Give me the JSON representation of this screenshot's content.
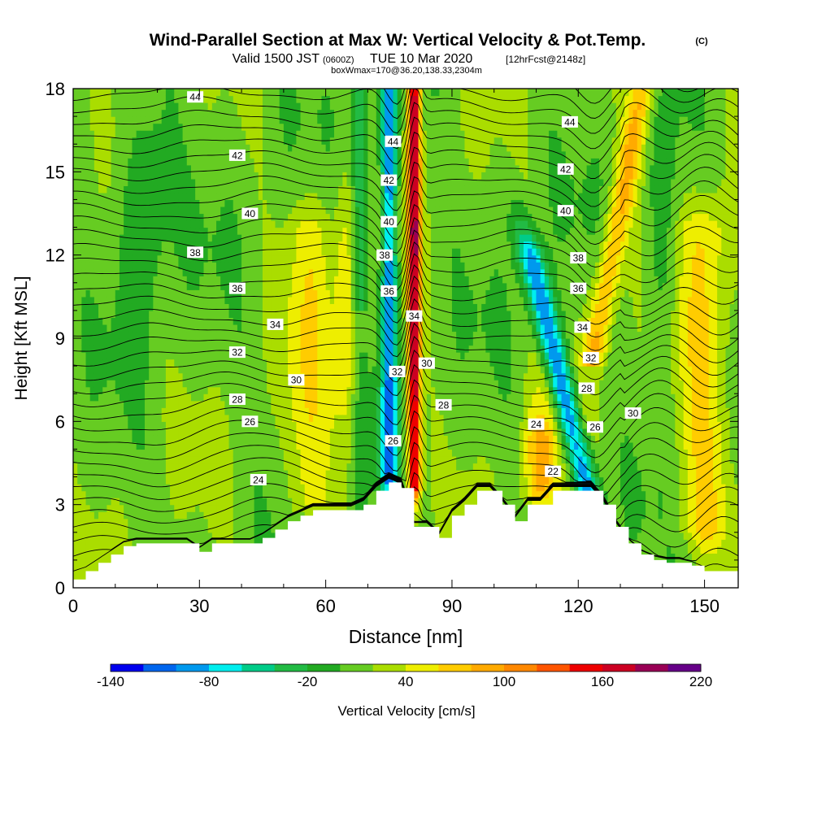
{
  "chart_data": {
    "type": "heatmap",
    "title": "Wind-Parallel Section at Max W: Vertical Velocity & Pot.Temp.",
    "title_mark": "(C)",
    "subtitle": {
      "valid": "Valid 1500 JST",
      "utc": "(0600Z)",
      "date": "TUE 10 Mar 2020",
      "forecast": "[12hrFcst@2148z]",
      "box_info": "boxWmax=170@36.20,138.33,2304m"
    },
    "xlabel": "Distance [nm]",
    "ylabel": "Height [Kft MSL]",
    "xlim": [
      0,
      158
    ],
    "ylim": [
      0,
      18
    ],
    "x_ticks": [
      0,
      30,
      60,
      90,
      120,
      150
    ],
    "y_ticks": [
      0,
      3,
      6,
      9,
      12,
      15,
      18
    ],
    "colorbar": {
      "label": "Vertical Velocity [cm/s]",
      "tick_labels": [
        "-140",
        "-80",
        "-20",
        "40",
        "100",
        "160",
        "220"
      ],
      "tick_values": [
        -140,
        -80,
        -20,
        40,
        100,
        160,
        220
      ],
      "levels": [
        -140,
        -120,
        -100,
        -80,
        -60,
        -40,
        -20,
        0,
        20,
        40,
        60,
        80,
        100,
        120,
        140,
        160,
        180,
        200,
        220
      ],
      "colors": [
        "#0000ee",
        "#0066ee",
        "#0099ee",
        "#00eeee",
        "#00cc88",
        "#22bb44",
        "#22aa22",
        "#66cc22",
        "#aadd00",
        "#eeee00",
        "#ffcc00",
        "#ffaa00",
        "#ff8800",
        "#ff5500",
        "#ee0000",
        "#cc0022",
        "#990055",
        "#660088"
      ]
    },
    "terrain": {
      "x": [
        0,
        3,
        6,
        9,
        12,
        15,
        18,
        21,
        24,
        27,
        30,
        33,
        36,
        39,
        42,
        45,
        48,
        51,
        54,
        57,
        60,
        63,
        66,
        69,
        72,
        75,
        78,
        81,
        84,
        87,
        90,
        93,
        96,
        99,
        102,
        105,
        108,
        111,
        114,
        117,
        120,
        123,
        126,
        129,
        132,
        135,
        138,
        141,
        144,
        147,
        150,
        153,
        156,
        158
      ],
      "height_kft": [
        0.3,
        0.6,
        0.9,
        1.2,
        1.5,
        1.6,
        1.6,
        1.6,
        1.6,
        1.6,
        1.3,
        1.6,
        1.6,
        1.6,
        1.6,
        1.8,
        2.1,
        2.4,
        2.6,
        2.8,
        2.8,
        2.8,
        2.8,
        3.0,
        3.5,
        3.8,
        3.6,
        2.2,
        2.2,
        1.8,
        2.6,
        3.0,
        3.5,
        3.5,
        3.0,
        2.4,
        3.0,
        3.0,
        3.5,
        3.5,
        3.5,
        3.5,
        3.0,
        2.2,
        1.6,
        1.2,
        1.0,
        0.9,
        0.9,
        0.8,
        0.6,
        0.6,
        0.6,
        0.6
      ]
    },
    "updrafts": [
      {
        "x": 81,
        "width_nm": 1.5,
        "peak_cm_s": 170,
        "z_base": 3.6,
        "z_top": 18
      },
      {
        "x": 111,
        "width_nm": 4,
        "peak_cm_s": 70,
        "z_base": 3.5,
        "z_top": 5.5
      },
      {
        "x": 150,
        "width_nm": 6,
        "peak_cm_s": 50,
        "z_base": 2,
        "z_top": 13
      },
      {
        "x": 56,
        "width_nm": 5,
        "peak_cm_s": 40,
        "z_base": 3,
        "z_top": 13
      }
    ],
    "downdrafts": [
      {
        "x": 75,
        "width_nm": 2,
        "peak_cm_s": -110,
        "z_base": 3.8,
        "z_top": 18
      },
      {
        "x": 123,
        "width_nm": 3,
        "peak_cm_s": -120,
        "z_base": 3,
        "z_top": 12
      }
    ],
    "theta_contours": {
      "levels_c": [
        22,
        24,
        26,
        28,
        30,
        32,
        34,
        36,
        38,
        40,
        42,
        44
      ],
      "labeled": [
        {
          "text": "44",
          "x": 29,
          "z": 17.7
        },
        {
          "text": "42",
          "x": 39,
          "z": 15.6
        },
        {
          "text": "40",
          "x": 42,
          "z": 13.5
        },
        {
          "text": "38",
          "x": 29,
          "z": 12.1
        },
        {
          "text": "36",
          "x": 39,
          "z": 10.8
        },
        {
          "text": "34",
          "x": 48,
          "z": 9.5
        },
        {
          "text": "32",
          "x": 39,
          "z": 8.5
        },
        {
          "text": "30",
          "x": 53,
          "z": 7.5
        },
        {
          "text": "28",
          "x": 39,
          "z": 6.8
        },
        {
          "text": "26",
          "x": 42,
          "z": 6.0
        },
        {
          "text": "24",
          "x": 44,
          "z": 3.9
        },
        {
          "text": "44",
          "x": 76,
          "z": 16.1
        },
        {
          "text": "42",
          "x": 75,
          "z": 14.7
        },
        {
          "text": "40",
          "x": 75,
          "z": 13.2
        },
        {
          "text": "38",
          "x": 74,
          "z": 12.0
        },
        {
          "text": "36",
          "x": 75,
          "z": 10.7
        },
        {
          "text": "34",
          "x": 81,
          "z": 9.8
        },
        {
          "text": "32",
          "x": 77,
          "z": 7.8
        },
        {
          "text": "30",
          "x": 84,
          "z": 8.1
        },
        {
          "text": "28",
          "x": 88,
          "z": 6.6
        },
        {
          "text": "26",
          "x": 76,
          "z": 5.3
        },
        {
          "text": "44",
          "x": 118,
          "z": 16.8
        },
        {
          "text": "42",
          "x": 117,
          "z": 15.1
        },
        {
          "text": "40",
          "x": 117,
          "z": 13.6
        },
        {
          "text": "38",
          "x": 120,
          "z": 11.9
        },
        {
          "text": "36",
          "x": 120,
          "z": 10.8
        },
        {
          "text": "34",
          "x": 121,
          "z": 9.4
        },
        {
          "text": "32",
          "x": 123,
          "z": 8.3
        },
        {
          "text": "28",
          "x": 122,
          "z": 7.2
        },
        {
          "text": "26",
          "x": 124,
          "z": 5.8
        },
        {
          "text": "24",
          "x": 110,
          "z": 5.9
        },
        {
          "text": "22",
          "x": 114,
          "z": 4.2
        },
        {
          "text": "30",
          "x": 133,
          "z": 6.3
        }
      ]
    }
  }
}
